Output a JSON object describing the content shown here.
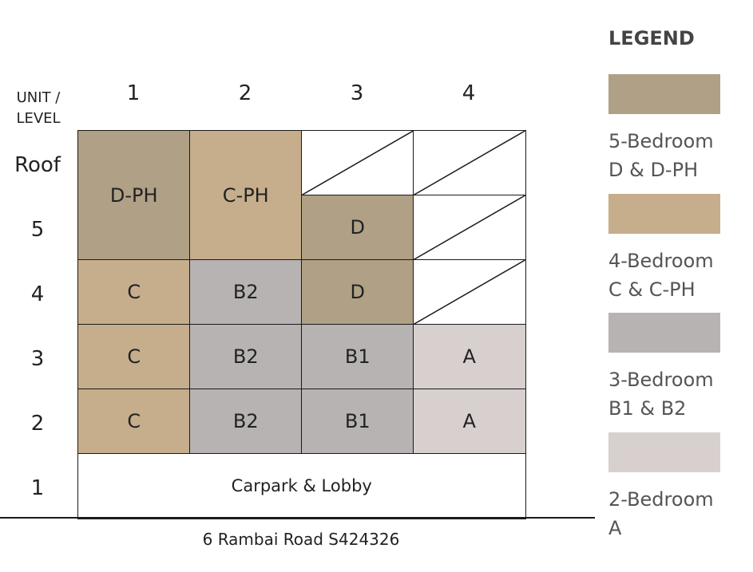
{
  "header": {
    "unit_level_label": "UNIT / LEVEL",
    "units": [
      "1",
      "2",
      "3",
      "4"
    ]
  },
  "levels": [
    "Roof",
    "5",
    "4",
    "3",
    "2",
    "1"
  ],
  "cells": [
    {
      "label": "D-PH",
      "unit": 1,
      "levels": [
        "Roof",
        "5"
      ],
      "type": "5br"
    },
    {
      "label": "C-PH",
      "unit": 2,
      "levels": [
        "Roof",
        "5"
      ],
      "type": "4br"
    },
    {
      "label": "",
      "unit": 3,
      "levels": [
        "Roof"
      ],
      "type": "none"
    },
    {
      "label": "D",
      "unit": 3,
      "levels": [
        "5"
      ],
      "type": "5br"
    },
    {
      "label": "",
      "unit": 4,
      "levels": [
        "Roof"
      ],
      "type": "none"
    },
    {
      "label": "",
      "unit": 4,
      "levels": [
        "5"
      ],
      "type": "none"
    },
    {
      "label": "C",
      "unit": 1,
      "levels": [
        "4"
      ],
      "type": "4br"
    },
    {
      "label": "B2",
      "unit": 2,
      "levels": [
        "4"
      ],
      "type": "3br"
    },
    {
      "label": "D",
      "unit": 3,
      "levels": [
        "4"
      ],
      "type": "5br"
    },
    {
      "label": "",
      "unit": 4,
      "levels": [
        "4"
      ],
      "type": "none"
    },
    {
      "label": "C",
      "unit": 1,
      "levels": [
        "3"
      ],
      "type": "4br"
    },
    {
      "label": "B2",
      "unit": 2,
      "levels": [
        "3"
      ],
      "type": "3br"
    },
    {
      "label": "B1",
      "unit": 3,
      "levels": [
        "3"
      ],
      "type": "3br"
    },
    {
      "label": "A",
      "unit": 4,
      "levels": [
        "3"
      ],
      "type": "2br"
    },
    {
      "label": "C",
      "unit": 1,
      "levels": [
        "2"
      ],
      "type": "4br"
    },
    {
      "label": "B2",
      "unit": 2,
      "levels": [
        "2"
      ],
      "type": "3br"
    },
    {
      "label": "B1",
      "unit": 3,
      "levels": [
        "2"
      ],
      "type": "3br"
    },
    {
      "label": "A",
      "unit": 4,
      "levels": [
        "2"
      ],
      "type": "2br"
    },
    {
      "label": "Carpark & Lobby",
      "unit": 1,
      "span_units": 4,
      "levels": [
        "1"
      ],
      "type": "common"
    }
  ],
  "address": "6 Rambai Road S424326",
  "legend": {
    "title": "LEGEND",
    "items": [
      {
        "type": "5br",
        "line1": "5-Bedroom",
        "line2": "D & D-PH",
        "color": "#b0a085"
      },
      {
        "type": "4br",
        "line1": "4-Bedroom",
        "line2": "C & C-PH",
        "color": "#c6ae8c"
      },
      {
        "type": "3br",
        "line1": "3-Bedroom",
        "line2": "B1 & B2",
        "color": "#b8b3b3"
      },
      {
        "type": "2br",
        "line1": "2-Bedroom",
        "line2": "A",
        "color": "#d8d0cf"
      }
    ]
  },
  "colors": {
    "none": "#ffffff",
    "common": "#ffffff",
    "line": "#1a1a1a"
  }
}
